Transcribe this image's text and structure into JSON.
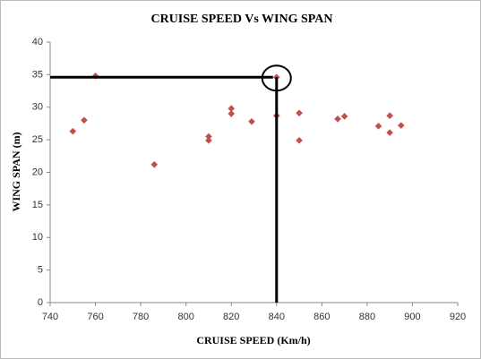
{
  "chart_data": {
    "type": "scatter",
    "title": "CRUISE SPEED Vs WING SPAN",
    "x_label": "CRUISE SPEED (Km/h)",
    "y_label": "WING SPAN (m)",
    "series": [
      {
        "color": "#c0504d",
        "x": [
          750,
          755,
          760,
          786,
          810,
          810,
          820,
          820,
          829,
          840,
          840,
          850,
          850,
          867,
          870,
          885,
          890,
          890,
          895
        ],
        "values": [
          26.3,
          28,
          34.8,
          21.2,
          25.5,
          24.9,
          29.8,
          29,
          27.8,
          34.6,
          28.7,
          29.1,
          24.9,
          28.2,
          28.6,
          27.1,
          28.7,
          26.1,
          27.2
        ]
      }
    ],
    "xlim": [
      740,
      920
    ],
    "xticks": [
      740,
      760,
      780,
      800,
      820,
      840,
      860,
      880,
      900,
      920
    ],
    "ylim": [
      0,
      40
    ],
    "yticks": [
      0,
      5,
      10,
      15,
      20,
      25,
      30,
      35,
      40
    ],
    "grid": false
  }
}
